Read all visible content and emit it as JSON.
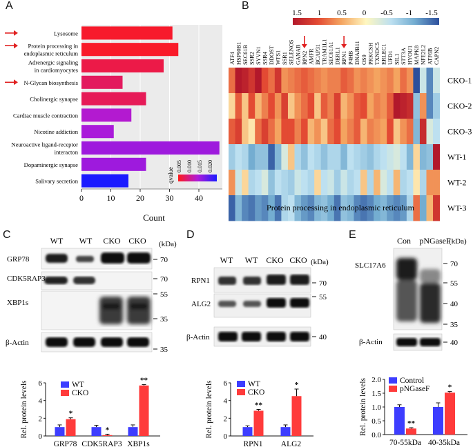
{
  "panels": {
    "a": "A",
    "b": "B",
    "c": "C",
    "d": "D",
    "e": "E"
  },
  "panel_a": {
    "chart_data": {
      "type": "bar",
      "categories": [
        "Lysosome",
        "Protein processing in endoplasmic reticulum",
        "Adrenergic signaling in cardiomyocytes",
        "N-Glycan biosynthesis",
        "Cholinergic synapse",
        "Cardiac muscle contraction",
        "Nicotine addiction",
        "Neuroactive ligand-receptor interacton",
        "Dopaminergic synapse",
        "Salivary secretion"
      ],
      "category_lines": [
        [
          "Lysosome"
        ],
        [
          "Protein processing in",
          "endoplasmic reticulum"
        ],
        [
          "Adrenergic signaling",
          "in cardiomyocytes"
        ],
        [
          "N-Glycan biosynthesis"
        ],
        [
          "Cholinergic synapse"
        ],
        [
          "Cardiac muscle contraction"
        ],
        [
          "Nicotine addiction"
        ],
        [
          "Neuroactive ligand-receptor",
          "interacton"
        ],
        [
          "Dopaminergic synapse"
        ],
        [
          "Salivary secretion"
        ]
      ],
      "values": [
        31,
        33,
        28,
        14,
        22,
        17,
        11,
        47,
        22,
        16
      ],
      "qvalue": [
        0.0012,
        0.001,
        0.003,
        0.0045,
        0.004,
        0.012,
        0.013,
        0.014,
        0.014,
        0.025
      ],
      "arrows": [
        true,
        true,
        false,
        true,
        false,
        false,
        false,
        false,
        false,
        false
      ],
      "xlabel": "Count",
      "xlim": [
        0,
        48
      ],
      "xticks": [
        0,
        10,
        20,
        30,
        40
      ],
      "legend": {
        "title": "qvalue",
        "ticks": [
          "0.005",
          "0.010",
          "0.015",
          "0.020"
        ],
        "low_color": "#ff1a1a",
        "high_color": "#1a1aff"
      }
    }
  },
  "panel_b": {
    "genes": [
      "ATF4",
      "HSP90B1",
      "SEC61B",
      "SSR2",
      "SYVN1",
      "SSR4",
      "DDOST",
      "WFS1",
      "SSR1",
      "SELENOS",
      "GANAB",
      "RPN2",
      "AMFR",
      "BCAP31",
      "TRAM1L1",
      "SEC61A1",
      "DERL1",
      "RPN1",
      "P4HB",
      "DNAJB11",
      "OS9",
      "PRKCSH",
      "TXNDC5",
      "ERLEC1",
      "UFD1",
      "SIL1",
      "STT3A",
      "HYOU1",
      "MAPK8",
      "NFE2L2",
      "ATF6B",
      "CAPN2"
    ],
    "arrow_genes": [
      "RPN2",
      "RPN1"
    ],
    "rows": [
      "CKO-1",
      "CKO-2",
      "CKO-3",
      "WT-1",
      "WT-2",
      "WT-3"
    ],
    "colorbar_ticks": [
      "1.5",
      "1",
      "0.5",
      "0",
      "-0.5",
      "-1",
      "-1.5"
    ],
    "title": "Protein processing in endoplasmic reticulum",
    "chart_data": {
      "type": "heatmap",
      "values": [
        [
          0.8,
          1.5,
          1.4,
          1.2,
          1.5,
          1.0,
          0.8,
          1.2,
          0.6,
          0.7,
          0.8,
          0.9,
          0.8,
          0.7,
          0.6,
          0.7,
          0.7,
          0.9,
          0.8,
          0.6,
          0.7,
          0.6,
          0.5,
          0.6,
          0.7,
          0.5,
          0.8,
          0.6,
          -1.6,
          -0.4,
          -1.2,
          -0.4
        ],
        [
          0.2,
          0.9,
          0.3,
          1.0,
          0.4,
          0.7,
          1.0,
          0.6,
          1.1,
          0.3,
          0.6,
          0.8,
          1.0,
          0.3,
          0.9,
          0.7,
          1.1,
          0.4,
          0.6,
          0.9,
          1.0,
          0.5,
          0.7,
          0.6,
          0.9,
          1.5,
          1.4,
          1.3,
          -0.8,
          0.6,
          -1.2,
          -0.7
        ],
        [
          0.9,
          1.1,
          0.3,
          0.1,
          0.8,
          1.1,
          0.8,
          0.5,
          1.0,
          1.0,
          0.7,
          1.0,
          0.4,
          0.6,
          0.3,
          0.8,
          1.0,
          0.5,
          0.7,
          0.9,
          0.4,
          0.7,
          0.6,
          0.5,
          1.0,
          0.3,
          0.6,
          0.8,
          -0.9,
          1.3,
          -0.3,
          -0.5
        ],
        [
          -0.7,
          -0.5,
          -0.6,
          -1.0,
          -0.8,
          -0.8,
          -1.4,
          -0.9,
          -0.3,
          0.3,
          -0.6,
          -0.8,
          -0.5,
          -0.6,
          -0.8,
          -0.6,
          -0.6,
          -0.9,
          -0.5,
          -0.6,
          -0.7,
          -0.8,
          -0.6,
          -0.5,
          -0.4,
          -0.3,
          -0.5,
          -0.9,
          0.2,
          -0.9,
          -0.8,
          1.5
        ],
        [
          0.6,
          -0.4,
          0.2,
          -0.6,
          -0.5,
          -0.3,
          -0.8,
          -0.5,
          -0.6,
          -0.7,
          -0.4,
          -0.5,
          -0.6,
          0.2,
          -0.5,
          -0.4,
          -0.7,
          -0.4,
          -0.6,
          -0.5,
          0.3,
          -0.6,
          0.4,
          -0.3,
          -0.5,
          0.4,
          -0.6,
          -0.5,
          0.1,
          -0.6,
          0.6,
          0.6
        ],
        [
          -1.4,
          -0.9,
          -1.2,
          -1.3,
          -1.1,
          -1.2,
          -1.0,
          -1.3,
          -0.6,
          -0.5,
          -0.9,
          -1.1,
          -1.2,
          -0.9,
          -0.8,
          -1.0,
          -1.3,
          -0.8,
          -0.9,
          -1.2,
          -1.3,
          -1.2,
          -1.0,
          -0.9,
          -1.1,
          -1.2,
          -1.1,
          -0.6,
          0.8,
          -1.0,
          0.4,
          1.2
        ]
      ]
    }
  },
  "panel_c": {
    "lanes": [
      "WT",
      "WT",
      "CKO",
      "CKO"
    ],
    "kda": "(kDa)",
    "blots": [
      "GRP78",
      "CDK5RAP3",
      "XBP1s",
      "β-Actin"
    ],
    "markers": [
      "70",
      "70",
      "55",
      "35",
      "35"
    ],
    "chart_data": {
      "type": "bar",
      "categories": [
        "GRP78",
        "CDK5RAP3",
        "XBP1s"
      ],
      "series": [
        {
          "name": "WT",
          "values": [
            1.0,
            1.0,
            1.0
          ],
          "err": [
            0.25,
            0.2,
            0.25
          ],
          "color": "#3d3dff"
        },
        {
          "name": "CKO",
          "values": [
            1.9,
            0.1,
            5.7
          ],
          "err": [
            0.15,
            0.1,
            0.1
          ],
          "color": "#ff3b3b"
        }
      ],
      "sig": [
        "*",
        "*",
        "**"
      ],
      "ylabel": "Rel. protein levels",
      "ylim": [
        0,
        6
      ],
      "yticks": [
        0,
        2,
        4,
        6
      ]
    }
  },
  "panel_d": {
    "lanes": [
      "WT",
      "WT",
      "CKO",
      "CKO"
    ],
    "kda": "(kDa)",
    "blots": [
      "RPN1",
      "ALG2",
      "β-Actin"
    ],
    "markers": [
      "70",
      "55",
      "40"
    ],
    "chart_data": {
      "type": "bar",
      "categories": [
        "RPN1",
        "ALG2"
      ],
      "series": [
        {
          "name": "WT",
          "values": [
            1.0,
            1.0
          ],
          "err": [
            0.15,
            0.25
          ],
          "color": "#3d3dff"
        },
        {
          "name": "CKO",
          "values": [
            2.85,
            4.5
          ],
          "err": [
            0.15,
            0.8
          ],
          "color": "#ff3b3b"
        }
      ],
      "sig": [
        "**",
        "*"
      ],
      "ylabel": "Rel. protein levels",
      "ylim": [
        0,
        6
      ],
      "yticks": [
        0,
        2,
        4,
        6
      ]
    }
  },
  "panel_e": {
    "lanes": [
      "Con",
      "pNGaseF"
    ],
    "kda": "(kDa)",
    "blots": [
      "SLC17A6",
      "β-Actin"
    ],
    "markers": [
      "70",
      "55",
      "40",
      "35",
      "40"
    ],
    "chart_data": {
      "type": "bar",
      "categories": [
        "70-55kDa",
        "40-35kDa"
      ],
      "series": [
        {
          "name": "Control",
          "values": [
            1.0,
            1.0
          ],
          "err": [
            0.08,
            0.15
          ],
          "color": "#3d3dff"
        },
        {
          "name": "pNGaseF",
          "values": [
            0.22,
            1.52
          ],
          "err": [
            0.03,
            0.04
          ],
          "color": "#ff3b3b"
        }
      ],
      "sig": [
        "**",
        "*"
      ],
      "ylabel": "Rel. protein levels",
      "ylim": [
        0,
        2.0
      ],
      "yticks": [
        "0.0",
        "0.5",
        "1.0",
        "1.5",
        "2.0"
      ]
    }
  }
}
